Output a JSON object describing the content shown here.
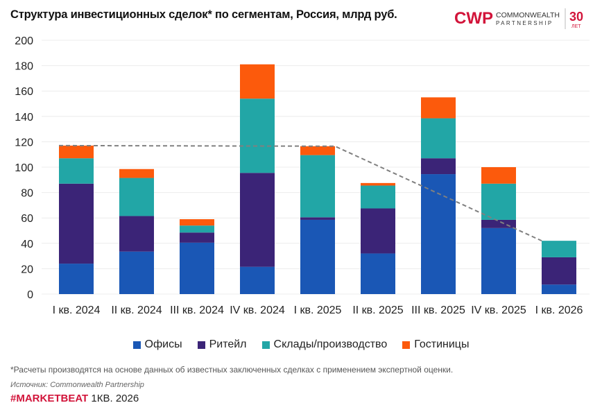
{
  "title": "Структура инвестиционных сделок* по сегментам, Россия, млрд руб.",
  "logo": {
    "text": "CWP",
    "line1": "COMMONWEALTH",
    "line2": "PARTNERSHIP",
    "years": "30",
    "years_label": "ЛЕТ",
    "color": "#d2143a"
  },
  "footnote": "*Расчеты производятся на основе данных об известных заключенных сделках с применением экспертной оценки.",
  "source": "Источник: Commonwealth Partnership",
  "marketbeat": {
    "tag": "#MARKETBEAT",
    "period": "1КВ. 2026"
  },
  "chart_data": {
    "type": "bar",
    "stacked": true,
    "title": "Структура инвестиционных сделок* по сегментам, Россия, млрд руб.",
    "categories": [
      "I кв. 2024",
      "II кв. 2024",
      "III кв. 2024",
      "IV кв. 2024",
      "I кв. 2025",
      "II кв. 2025",
      "III кв. 2025",
      "IV кв. 2025",
      "I кв. 2026"
    ],
    "series": [
      {
        "name": "Офисы",
        "color": "#1a57b5",
        "values": [
          24,
          33.5,
          40.5,
          21.5,
          58.5,
          32,
          94.5,
          52,
          7.5
        ]
      },
      {
        "name": "Ритейл",
        "color": "#3b2477",
        "values": [
          63,
          28,
          8,
          74,
          2,
          35.5,
          12.5,
          6.5,
          21.5
        ]
      },
      {
        "name": "Склады/производство",
        "color": "#22a6a6",
        "values": [
          20,
          30,
          5.5,
          58.5,
          49,
          18,
          31.5,
          28.5,
          13
        ]
      },
      {
        "name": "Гостиницы",
        "color": "#fc5a0c",
        "values": [
          10,
          7,
          5,
          27,
          7,
          2,
          16.5,
          13,
          0
        ]
      }
    ],
    "trend_line": {
      "style": "dashed",
      "color": "#808080",
      "categories": [
        "I кв. 2024",
        "I кв. 2025",
        "I кв. 2026"
      ],
      "values": [
        117,
        116.5,
        42
      ]
    },
    "ylim": [
      0,
      200
    ],
    "yticks": [
      0,
      20,
      40,
      60,
      80,
      100,
      120,
      140,
      160,
      180,
      200
    ],
    "grid": true,
    "legend": "bottom"
  }
}
